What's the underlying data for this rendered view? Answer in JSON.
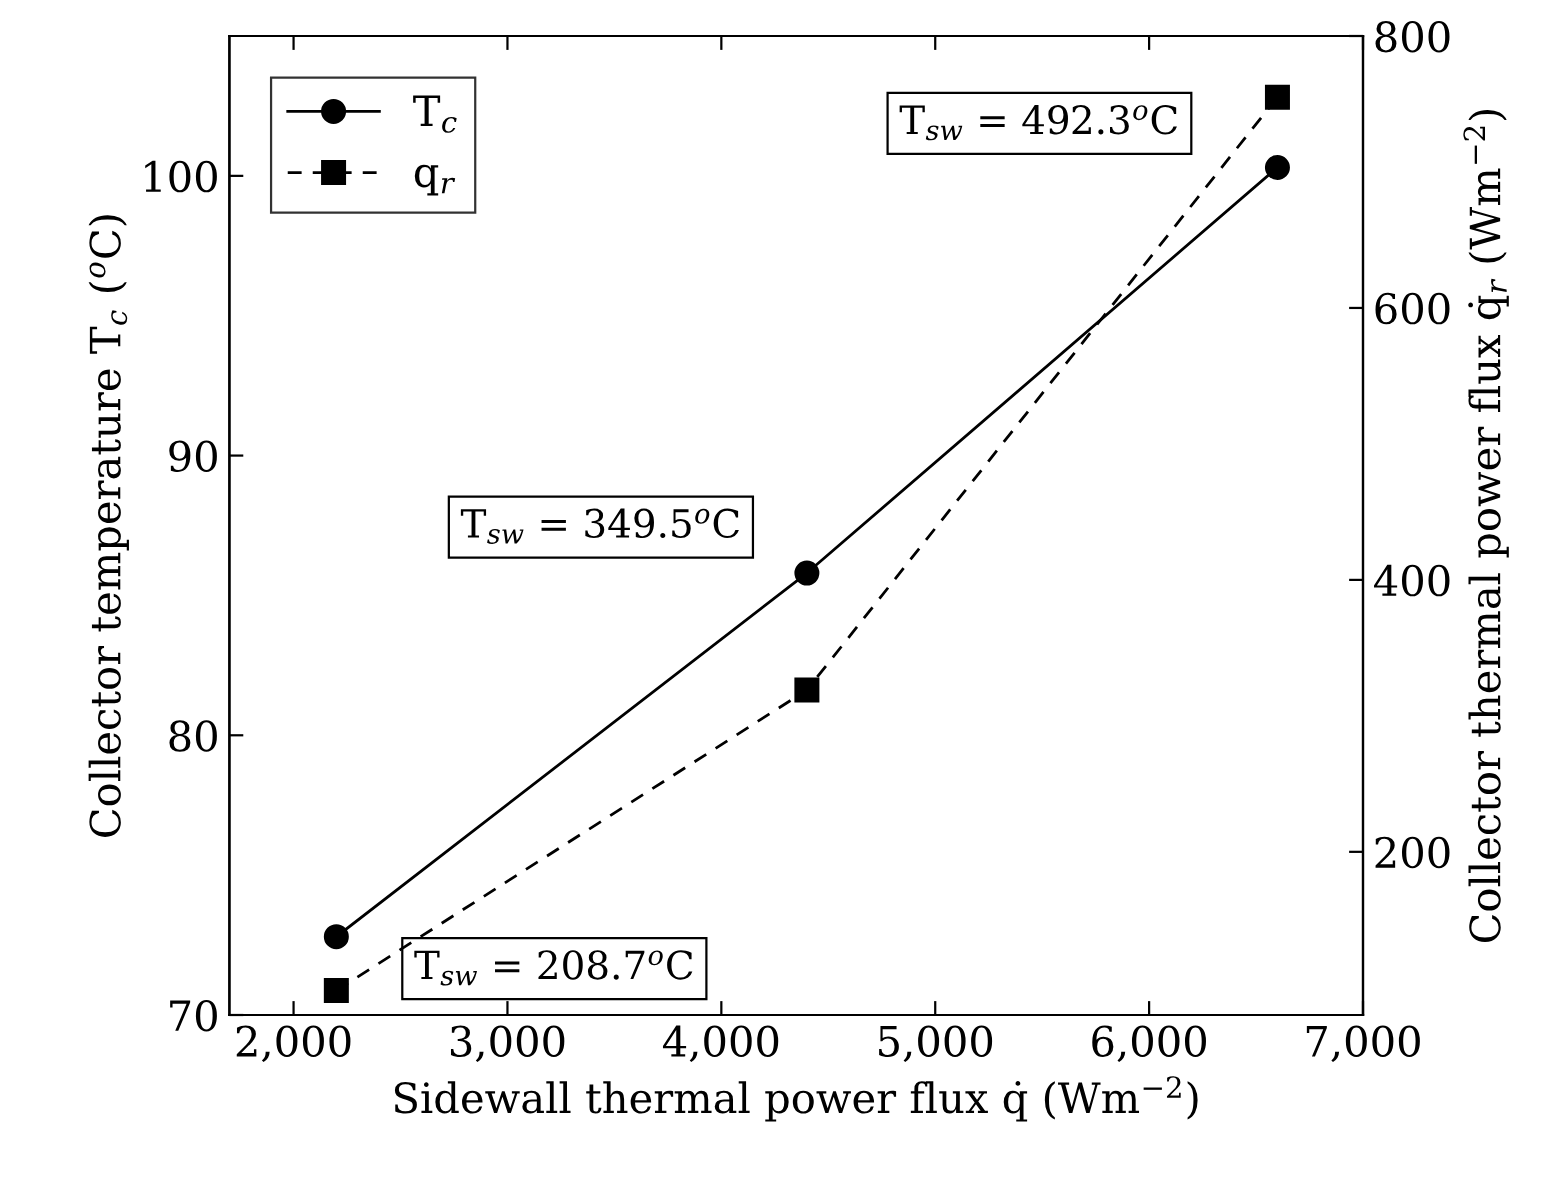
{
  "chart_data": {
    "type": "line",
    "xlabel": "Sidewall thermal power flux q̇ (Wm$^{−2}$)",
    "ylabel": "Collector temperature T$_{c}$ ($^{o}$C)",
    "y2label": "Collector thermal power flux q̇$_{r}$ (Wm$^{−2}$)",
    "x": [
      2200,
      4400,
      6600
    ],
    "series": [
      {
        "name": "T$_{c}$",
        "color": "#000000",
        "values": [
          72.8,
          85.8,
          100.3
        ],
        "marker": "circle",
        "line_style": "solid"
      },
      {
        "name": "q$_{r}$",
        "color": "#000000",
        "values": [
          98,
          319,
          755
        ],
        "marker": "square",
        "line_style": "dashed",
        "axis": "y2"
      }
    ],
    "xlim": [
      1700,
      7000
    ],
    "xticks": [
      {
        "value": 2000,
        "label": "2,000"
      },
      {
        "value": 3000,
        "label": "3,000"
      },
      {
        "value": 4000,
        "label": "4,000"
      },
      {
        "value": 5000,
        "label": "5,000"
      },
      {
        "value": 6000,
        "label": "6,000"
      },
      {
        "value": 7000,
        "label": "7,000"
      }
    ],
    "ylim": [
      70,
      105
    ],
    "yticks": [
      70,
      80,
      90,
      100
    ],
    "y2lim": [
      80,
      800
    ],
    "y2ticks": [
      200,
      400,
      600,
      800
    ],
    "annotations": [
      {
        "text": "T$_{sw}$ = 208.7$^{o}$C",
        "x": 2200,
        "y": 72.8
      },
      {
        "text": "T$_{sw}$ = 349.5$^{o}$C",
        "x": 4400,
        "y": 85.8
      },
      {
        "text": "T$_{sw}$ = 492.3$^{o}$C",
        "x": 6600,
        "y": 100.3
      }
    ],
    "grid": false,
    "legend": "top left"
  }
}
